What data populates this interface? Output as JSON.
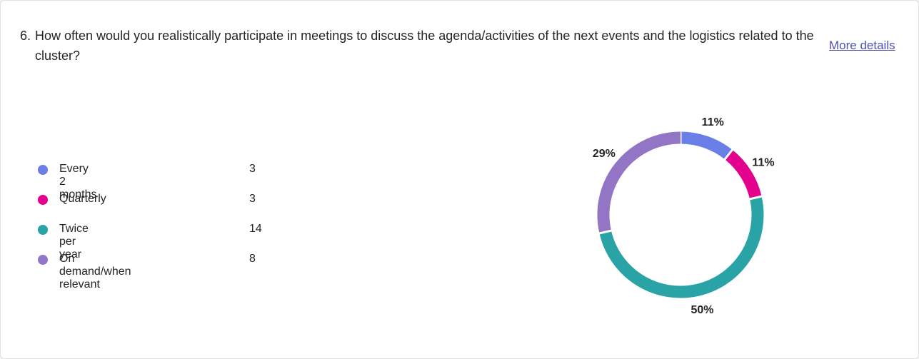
{
  "question": {
    "number": "6.",
    "text": "How often would you realistically participate in meetings to discuss the agenda/activities of the next events and the logistics related to the cluster?"
  },
  "link": "More details",
  "chart_data": {
    "type": "pie",
    "donut": true,
    "categories": [
      "Every 2 months",
      "Quarterly",
      "Twice per year",
      "On demand/when relevant"
    ],
    "values": [
      3,
      3,
      14,
      8
    ],
    "percent_labels": [
      "11%",
      "11%",
      "50%",
      "29%"
    ],
    "colors": [
      "#6a7ee8",
      "#e3008c",
      "#2aa3a6",
      "#9275c4"
    ]
  }
}
